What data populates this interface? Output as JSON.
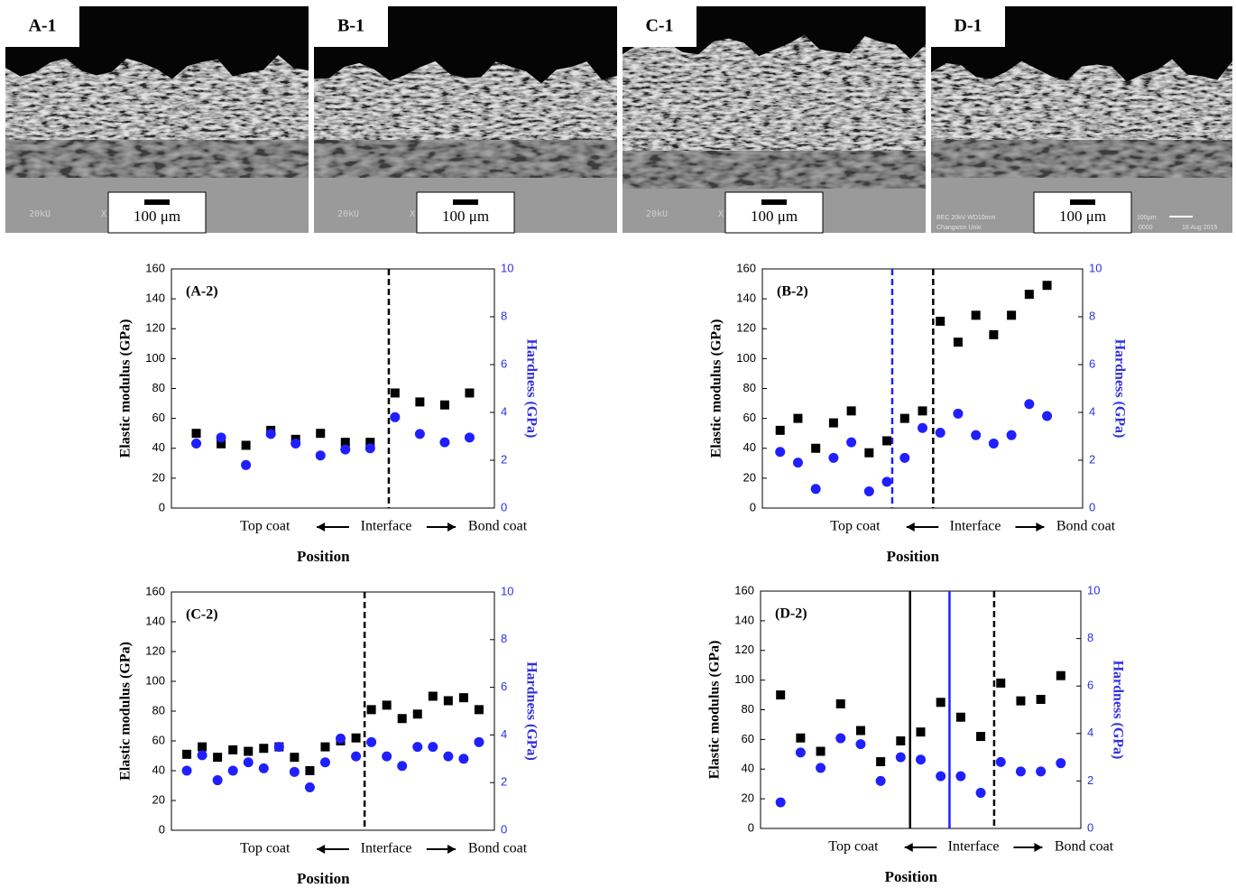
{
  "images": [
    {
      "label": "A-1",
      "scale_bar": "100 μm",
      "info": [
        "20kU",
        "X"
      ]
    },
    {
      "label": "B-1",
      "scale_bar": "100 μm",
      "info": [
        "20kU",
        "X"
      ]
    },
    {
      "label": "C-1",
      "scale_bar": "100 μm",
      "info": [
        "20kU",
        "X"
      ]
    },
    {
      "label": "D-1",
      "scale_bar": "100 μm",
      "info": [
        "BEC 20kV WD10mm",
        "Changwon Univ.",
        "100μm",
        "0000",
        "18 Aug 2015"
      ]
    }
  ],
  "chart_data": [
    {
      "type": "scatter",
      "title": "(A-2)",
      "ylabel": "Elastic modulus (GPa)",
      "y2label": "Hardness (GPa)",
      "xlabel": "Position",
      "annotations": [
        "Top coat",
        "Interface",
        "Bond coat"
      ],
      "xlim": [
        0,
        13
      ],
      "ylim": [
        0,
        160
      ],
      "yticks": [
        0,
        20,
        40,
        60,
        80,
        100,
        120,
        140,
        160
      ],
      "y2lim": [
        0,
        10
      ],
      "y2ticks": [
        0,
        2,
        4,
        6,
        8,
        10
      ],
      "x": [
        1,
        2,
        3,
        4,
        5,
        6,
        7,
        8,
        9,
        10,
        11,
        12
      ],
      "series": [
        {
          "color": "#000000",
          "marker": "square",
          "values": [
            50,
            43,
            42,
            52,
            46,
            50,
            44,
            44,
            77,
            71,
            69,
            77
          ]
        },
        {
          "color": "#1f1fff",
          "marker": "circle",
          "axis": "y2",
          "values": [
            2.7,
            2.95,
            1.8,
            3.1,
            2.7,
            2.2,
            2.45,
            2.5,
            3.8,
            3.1,
            2.75,
            2.95
          ]
        }
      ],
      "vlines": [
        {
          "x": 8.75,
          "color": "#000000",
          "dashed": true
        }
      ]
    },
    {
      "type": "scatter",
      "title": "(B-2)",
      "ylabel": "Elastic modulus (GPa)",
      "y2label": "Hardness (GPa)",
      "xlabel": "Position",
      "annotations": [
        "Top coat",
        "Interface",
        "Bond coat"
      ],
      "xlim": [
        0,
        18
      ],
      "ylim": [
        0,
        160
      ],
      "yticks": [
        0,
        20,
        40,
        60,
        80,
        100,
        120,
        140,
        160
      ],
      "y2lim": [
        0,
        10
      ],
      "y2ticks": [
        0,
        2,
        4,
        6,
        8,
        10
      ],
      "x": [
        1,
        2,
        3,
        4,
        5,
        6,
        7,
        8,
        9,
        10,
        11,
        12,
        13,
        14,
        15,
        16
      ],
      "series": [
        {
          "color": "#000000",
          "marker": "square",
          "values": [
            52,
            60,
            40,
            57,
            65,
            37,
            45,
            60,
            65,
            125,
            111,
            129,
            116,
            129,
            143,
            149
          ]
        },
        {
          "color": "#1f1fff",
          "marker": "circle",
          "axis": "y2",
          "values": [
            2.35,
            1.9,
            0.8,
            2.1,
            2.75,
            0.7,
            1.1,
            2.1,
            3.35,
            3.15,
            3.95,
            3.05,
            2.7,
            3.05,
            4.35,
            3.85
          ]
        }
      ],
      "vlines": [
        {
          "x": 7.3,
          "color": "#1f1fff",
          "dashed": true
        },
        {
          "x": 9.6,
          "color": "#000000",
          "dashed": true
        }
      ]
    },
    {
      "type": "scatter",
      "title": "(C-2)",
      "ylabel": "Elastic modulus (GPa)",
      "y2label": "Hardness (GPa)",
      "xlabel": "Position",
      "annotations": [
        "Top coat",
        "Interface",
        "Bond coat"
      ],
      "xlim": [
        0,
        21
      ],
      "ylim": [
        0,
        160
      ],
      "yticks": [
        0,
        20,
        40,
        60,
        80,
        100,
        120,
        140,
        160
      ],
      "y2lim": [
        0,
        10
      ],
      "y2ticks": [
        0,
        2,
        4,
        6,
        8,
        10
      ],
      "x": [
        1,
        2,
        3,
        4,
        5,
        6,
        7,
        8,
        9,
        10,
        11,
        12,
        13,
        14,
        15,
        16,
        17,
        18,
        19,
        20
      ],
      "series": [
        {
          "color": "#000000",
          "marker": "square",
          "values": [
            51,
            56,
            49,
            54,
            53,
            55,
            56,
            49,
            40,
            56,
            60,
            62,
            81,
            84,
            75,
            78,
            90,
            87,
            89,
            81
          ]
        },
        {
          "color": "#1f1fff",
          "marker": "circle",
          "axis": "y2",
          "values": [
            2.5,
            3.15,
            2.1,
            2.5,
            2.85,
            2.6,
            3.5,
            2.45,
            1.8,
            2.85,
            3.85,
            3.1,
            3.7,
            3.1,
            2.7,
            3.5,
            3.5,
            3.1,
            3.0,
            3.7
          ]
        }
      ],
      "vlines": [
        {
          "x": 12.56,
          "color": "#000000",
          "dashed": true
        }
      ]
    },
    {
      "type": "scatter",
      "title": "(D-2)",
      "ylabel": "Elastic modulus (GPa)",
      "y2label": "Hardness (GPa)",
      "xlabel": "Position",
      "annotations": [
        "Top coat",
        "Interface",
        "Bond coat"
      ],
      "xlim": [
        0,
        16
      ],
      "ylim": [
        0,
        160
      ],
      "yticks": [
        0,
        20,
        40,
        60,
        80,
        100,
        120,
        140,
        160
      ],
      "y2lim": [
        0,
        10
      ],
      "y2ticks": [
        0,
        2,
        4,
        6,
        8,
        10
      ],
      "x": [
        1,
        2,
        3,
        4,
        5,
        6,
        7,
        8,
        9,
        10,
        11,
        12,
        13,
        14,
        15
      ],
      "series": [
        {
          "color": "#000000",
          "marker": "square",
          "values": [
            90,
            61,
            52,
            84,
            66,
            45,
            59,
            65,
            85,
            75,
            62,
            98,
            86,
            87,
            103
          ]
        },
        {
          "color": "#1f1fff",
          "marker": "circle",
          "axis": "y2",
          "values": [
            1.1,
            3.2,
            2.55,
            3.8,
            3.55,
            2.0,
            3.0,
            2.9,
            2.2,
            2.2,
            1.5,
            2.8,
            2.4,
            2.4,
            2.75
          ]
        }
      ],
      "vlines": [
        {
          "x": 7.47,
          "color": "#000000",
          "dashed": false
        },
        {
          "x": 9.44,
          "color": "#1f1fff",
          "dashed": false
        },
        {
          "x": 11.67,
          "color": "#000000",
          "dashed": true
        }
      ]
    }
  ]
}
